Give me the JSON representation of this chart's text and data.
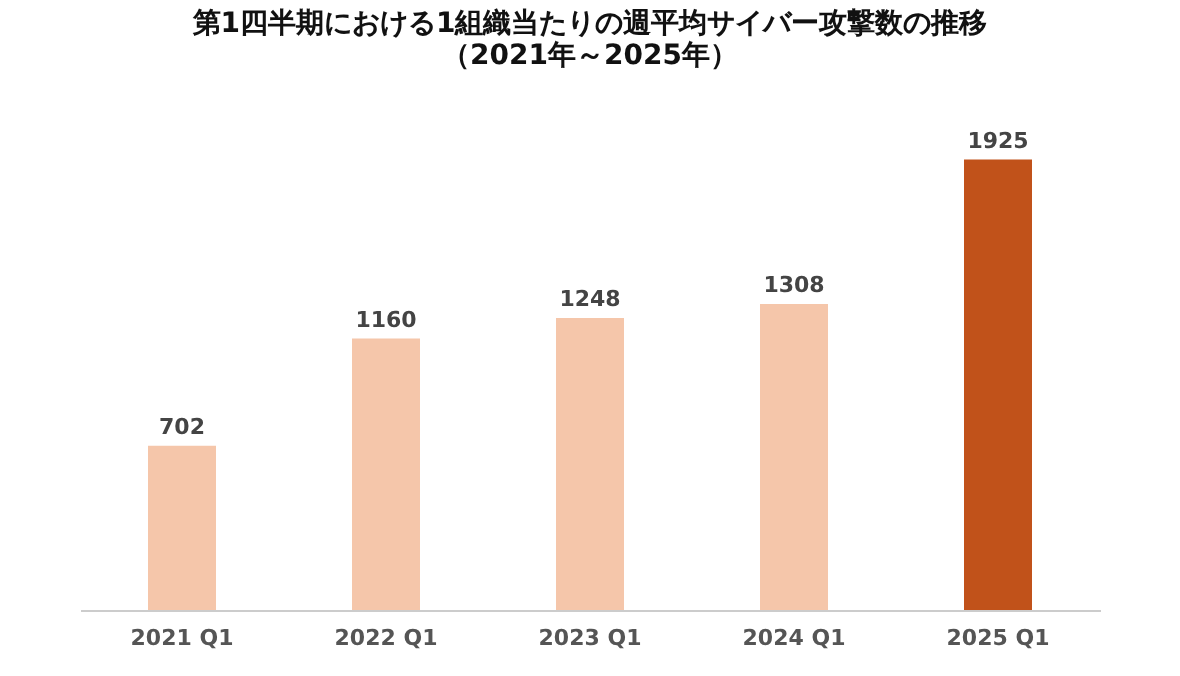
{
  "chart_data": {
    "type": "bar",
    "title": [
      "第1四半期における1組織当たりの週平均サイバー攻撃数の推移",
      "（2021年～2025年）"
    ],
    "categories": [
      "2021 Q1",
      "2022 Q1",
      "2023 Q1",
      "2024 Q1",
      "2025 Q1"
    ],
    "values": [
      702,
      1160,
      1248,
      1308,
      1925
    ],
    "colors": [
      "#f5c6aa",
      "#f5c6aa",
      "#f5c6aa",
      "#f5c6aa",
      "#c1521a"
    ],
    "data_labels": true,
    "grid": false,
    "tick_labels": "x"
  }
}
